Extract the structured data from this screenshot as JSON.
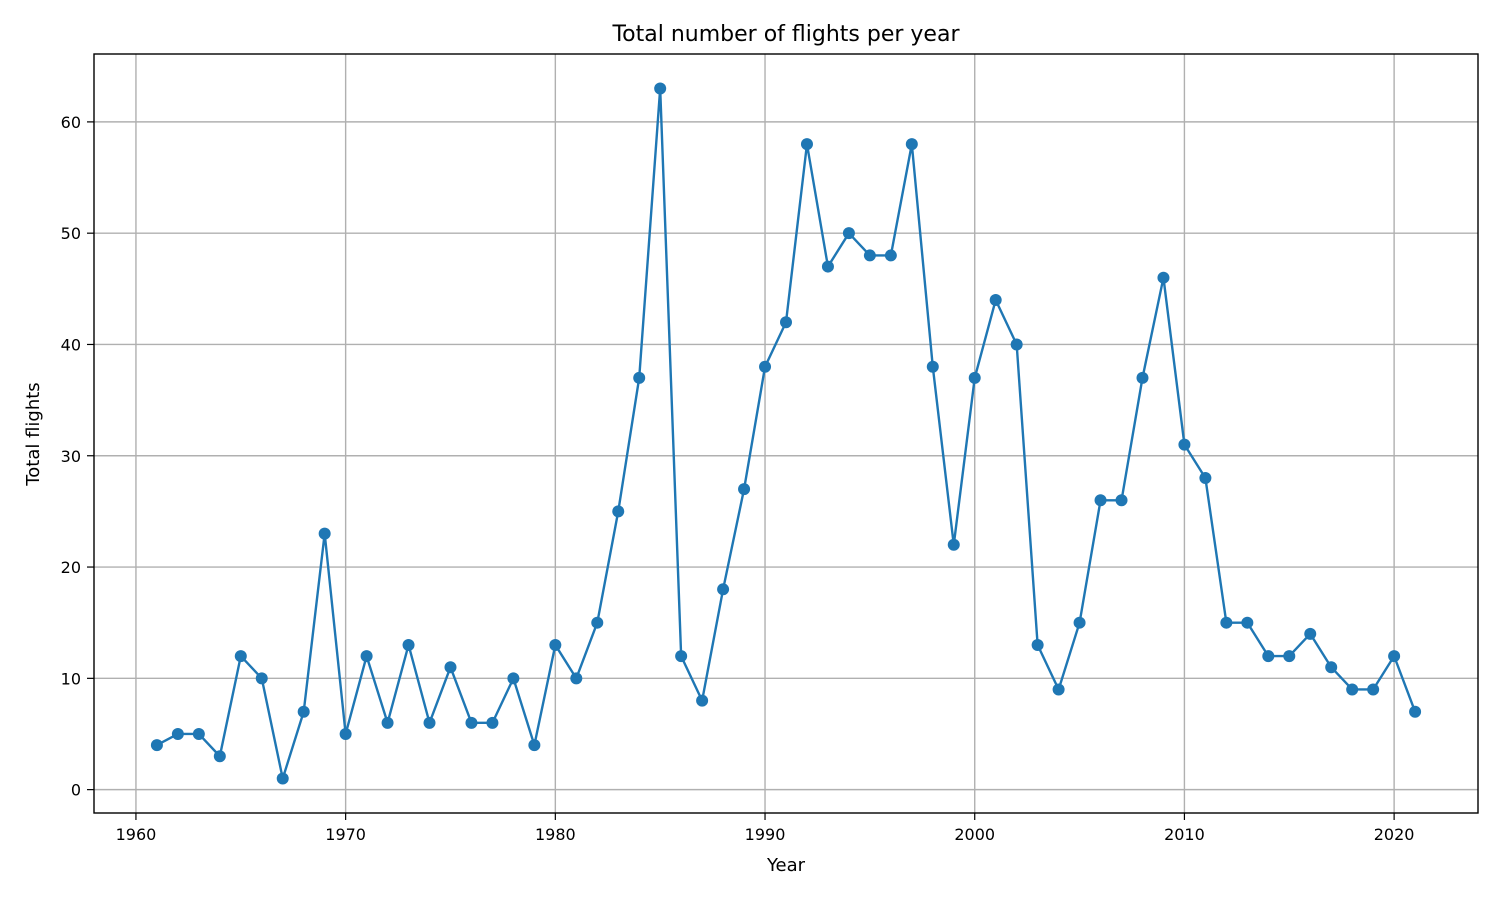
{
  "chart_data": {
    "type": "line",
    "title": "Total number of flights per year",
    "xlabel": "Year",
    "ylabel": "Total flights",
    "xlim": [
      1958,
      2024
    ],
    "ylim": [
      -2.1,
      66.1
    ],
    "xticks": [
      1960,
      1970,
      1980,
      1990,
      2000,
      2010,
      2020
    ],
    "yticks": [
      0,
      10,
      20,
      30,
      40,
      50,
      60
    ],
    "grid": true,
    "legend": "none",
    "line_color": "#1f77b4",
    "marker": "circle",
    "series": [
      {
        "x": [
          1961,
          1962,
          1963,
          1964,
          1965,
          1966,
          1967,
          1968,
          1969,
          1970,
          1971,
          1972,
          1973,
          1974,
          1975,
          1976,
          1977,
          1978,
          1979,
          1980,
          1981,
          1982,
          1983,
          1984,
          1985,
          1986,
          1987,
          1988,
          1989,
          1990,
          1991,
          1992,
          1993,
          1994,
          1995,
          1996,
          1997,
          1998,
          1999,
          2000,
          2001,
          2002,
          2003,
          2004,
          2005,
          2006,
          2007,
          2008,
          2009,
          2010,
          2011,
          2012,
          2013,
          2014,
          2015,
          2016,
          2017,
          2018,
          2019,
          2020,
          2021
        ],
        "values": [
          4,
          5,
          5,
          3,
          12,
          10,
          1,
          7,
          23,
          5,
          12,
          6,
          13,
          6,
          11,
          6,
          6,
          10,
          4,
          13,
          10,
          15,
          25,
          37,
          63,
          12,
          8,
          18,
          27,
          38,
          42,
          58,
          47,
          50,
          48,
          48,
          58,
          38,
          22,
          37,
          44,
          40,
          13,
          9,
          15,
          26,
          26,
          37,
          46,
          31,
          28,
          15,
          15,
          12,
          12,
          14,
          11,
          9,
          9,
          12,
          7
        ]
      }
    ]
  }
}
